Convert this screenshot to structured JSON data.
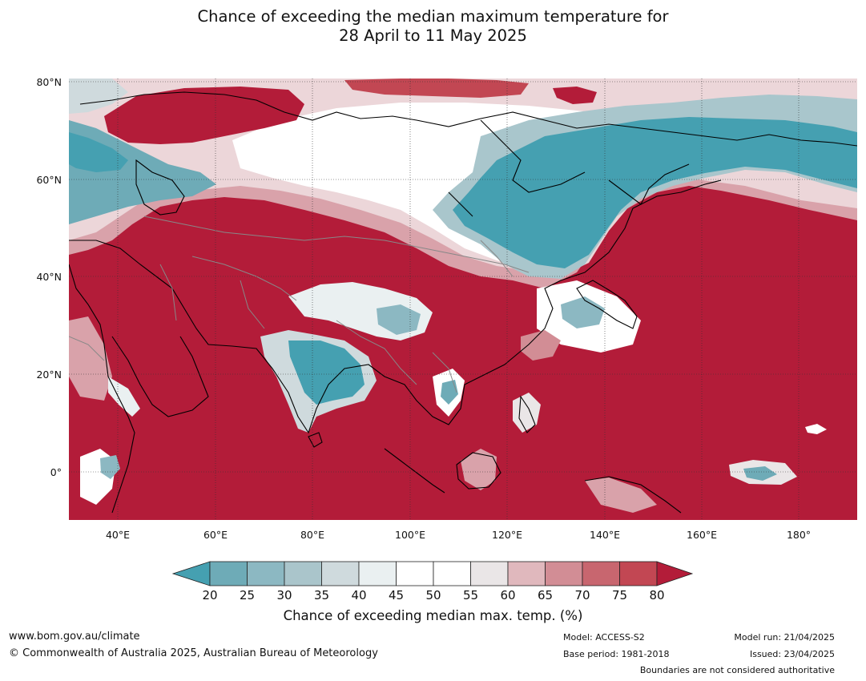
{
  "title": {
    "line1": "Chance of exceeding the median maximum temperature for",
    "line2": "28 April to 11 May 2025"
  },
  "map": {
    "lat_labels": [
      "80°N",
      "60°N",
      "40°N",
      "20°N",
      "0°"
    ],
    "lon_labels": [
      "40°E",
      "60°E",
      "80°E",
      "100°E",
      "120°E",
      "140°E",
      "160°E",
      "180°"
    ],
    "colors": {
      "above_strong": "#b31c39",
      "above": "#c24753",
      "neutral": "#ffffff",
      "below": "#45a0b1",
      "below_light": "#a9c6cc"
    }
  },
  "colorbar": {
    "ticks": [
      "20",
      "25",
      "30",
      "35",
      "40",
      "45",
      "50",
      "55",
      "60",
      "65",
      "70",
      "75",
      "80"
    ],
    "colors": [
      "#45a0b1",
      "#6eabb7",
      "#8cb8c2",
      "#aac5cb",
      "#cfdadd",
      "#eaf0f1",
      "#ffffff",
      "#ffffff",
      "#eae6e7",
      "#e0b8bd",
      "#d28d95",
      "#c8666f",
      "#c24753",
      "#b31c39"
    ],
    "label": "Chance of exceeding median max. temp. (%)"
  },
  "footer": {
    "website": "www.bom.gov.au/climate",
    "copyright": "© Commonwealth of Australia 2025, Australian Bureau of Meteorology",
    "model": "Model: ACCESS-S2",
    "base_period": "Base period: 1981-2018",
    "model_run": "Model run: 21/04/2025",
    "issued": "Issued: 23/04/2025",
    "disclaimer": "Boundaries are not considered authoritative"
  }
}
